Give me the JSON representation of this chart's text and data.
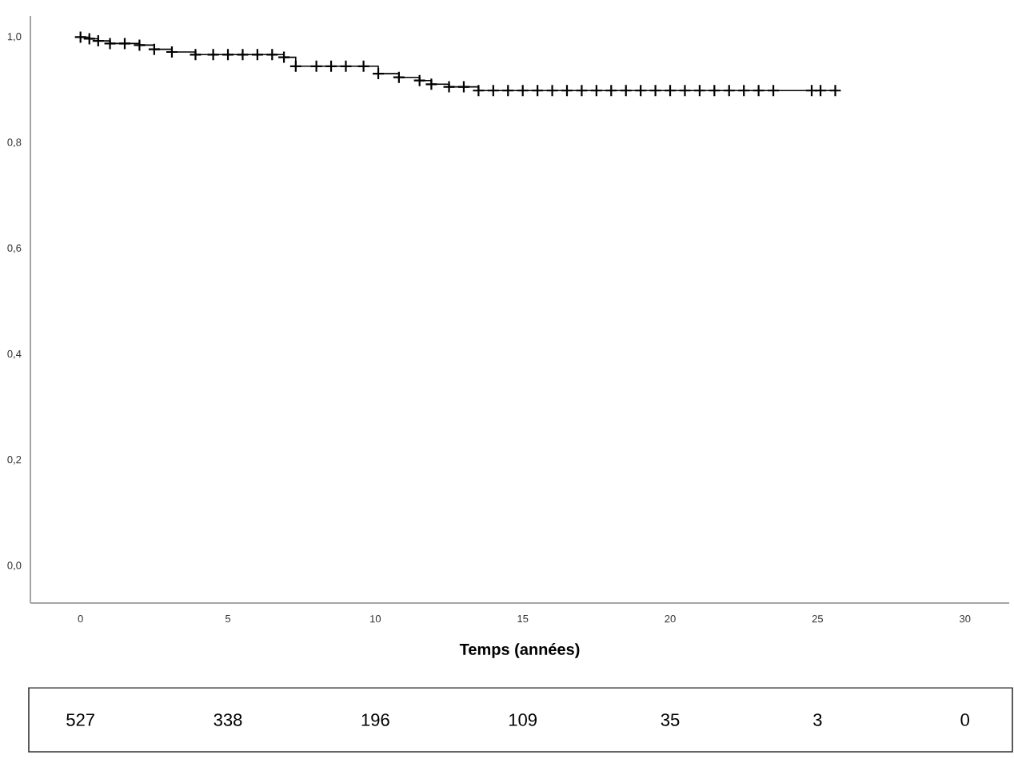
{
  "chart_data": {
    "type": "step",
    "xlabel": "Temps (années)",
    "x": [
      0,
      0.3,
      0.6,
      1.0,
      1.5,
      2.0,
      2.5,
      3.1,
      3.9,
      4.5,
      5,
      5.5,
      6,
      6.5,
      6.9,
      7.3,
      8,
      8.5,
      9,
      9.6,
      10.1,
      10.8,
      11.5,
      11.9,
      12.5,
      13.0,
      13.5,
      14,
      14.5,
      15,
      15.5,
      16,
      16.5,
      17,
      17.5,
      18,
      18.5,
      19,
      19.5,
      20,
      20.5,
      21,
      21.5,
      22,
      22.5,
      23,
      23.5,
      24.8,
      25.1,
      25.6
    ],
    "values": [
      1.0,
      0.997,
      0.993,
      0.988,
      0.988,
      0.985,
      0.977,
      0.972,
      0.967,
      0.967,
      0.967,
      0.967,
      0.967,
      0.967,
      0.962,
      0.945,
      0.945,
      0.945,
      0.945,
      0.945,
      0.931,
      0.924,
      0.918,
      0.911,
      0.906,
      0.906,
      0.899,
      0.899,
      0.899,
      0.899,
      0.899,
      0.899,
      0.899,
      0.899,
      0.899,
      0.899,
      0.899,
      0.899,
      0.899,
      0.899,
      0.899,
      0.899,
      0.899,
      0.899,
      0.899,
      0.899,
      0.899,
      0.899,
      0.899,
      0.899
    ],
    "color": "#000000",
    "marker": "cross",
    "xlim": [
      -1.7,
      31.5
    ],
    "ylim": [
      -0.07,
      1.04
    ],
    "xticks": [
      0,
      5,
      10,
      15,
      20,
      25,
      30
    ],
    "yticks": [
      {
        "value": 0,
        "label": "0,0"
      },
      {
        "value": 0.2,
        "label": "0,2"
      },
      {
        "value": 0.4,
        "label": "0,4"
      },
      {
        "value": 0.6,
        "label": "0,6"
      },
      {
        "value": 0.8,
        "label": "0,8"
      },
      {
        "value": 1.0,
        "label": "1,0"
      }
    ],
    "grid": false,
    "annotations": [
      "527",
      "338",
      "196",
      "109",
      "35",
      "3",
      "0"
    ]
  }
}
